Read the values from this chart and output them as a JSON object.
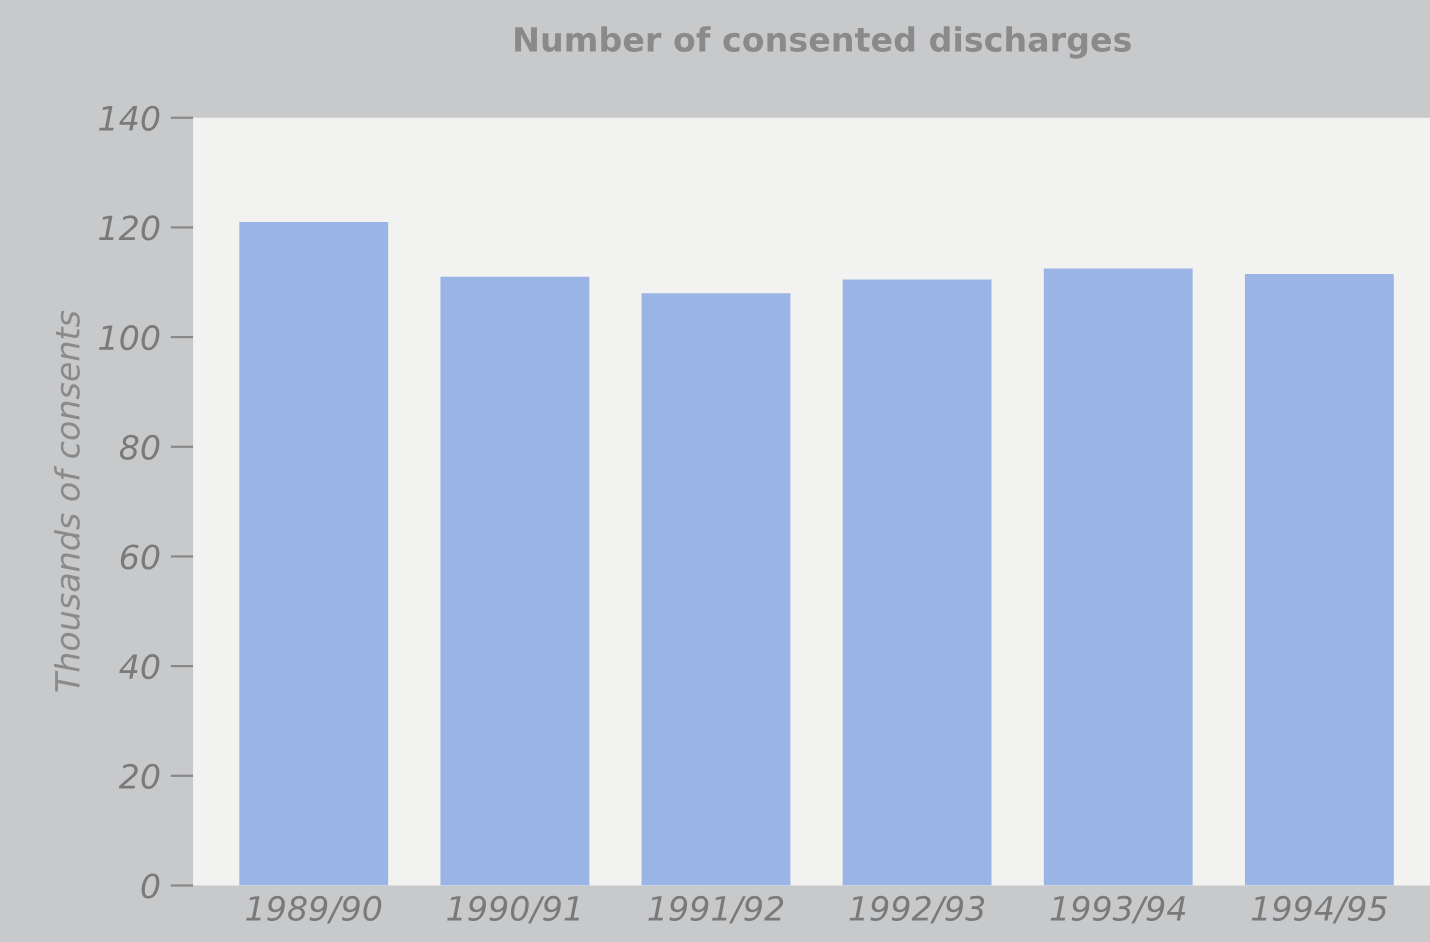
{
  "chart_data": {
    "type": "bar",
    "title": "Number of consented discharges",
    "ylabel": "Thousands of consents",
    "categories": [
      "1989/90",
      "1990/91",
      "1991/92",
      "1992/93",
      "1993/94",
      "1994/95"
    ],
    "values": [
      121,
      111,
      108,
      110.5,
      112.5,
      111.5
    ],
    "color": "#9ab4e6",
    "ylim": [
      0,
      140
    ],
    "yticks": [
      0,
      20,
      40,
      60,
      80,
      100,
      120,
      140
    ],
    "grid": false
  }
}
